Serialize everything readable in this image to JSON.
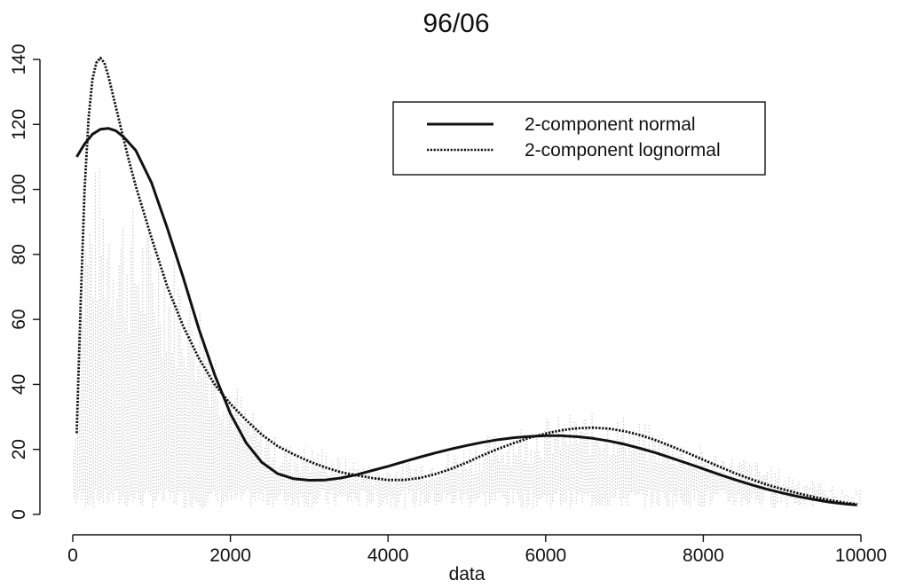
{
  "chart_data": {
    "type": "line",
    "title": "96/06",
    "xlabel": "data",
    "ylabel": "",
    "xlim": [
      0,
      10000
    ],
    "ylim": [
      0,
      140
    ],
    "x_ticks": [
      0,
      2000,
      4000,
      6000,
      8000,
      10000
    ],
    "y_ticks": [
      0,
      20,
      40,
      60,
      80,
      100,
      120,
      140
    ],
    "x_tick_labels": [
      "0",
      "2000",
      "4000",
      "6000",
      "8000",
      "10000"
    ],
    "y_tick_labels": [
      "0",
      "20",
      "40",
      "60",
      "80",
      "100",
      "120",
      "140"
    ],
    "legend_position": "top-right",
    "background_histogram": {
      "color": "#bdbdbd",
      "bin_width": 25,
      "envelope": {
        "x": [
          0,
          150,
          300,
          450,
          600,
          800,
          1000,
          1200,
          1400,
          1600,
          1800,
          2000,
          2200,
          2400,
          2600,
          2800,
          3000,
          3200,
          3400,
          3600,
          3800,
          4000,
          4500,
          5000,
          5500,
          6000,
          6500,
          7000,
          7500,
          8000,
          8500,
          9000,
          9500,
          10000
        ],
        "y": [
          20,
          95,
          110,
          105,
          100,
          95,
          90,
          85,
          78,
          70,
          55,
          45,
          35,
          28,
          24,
          22,
          22,
          21,
          18,
          17,
          16,
          16,
          18,
          22,
          27,
          30,
          32,
          31,
          26,
          21,
          18,
          14,
          10,
          5
        ]
      }
    },
    "series": [
      {
        "name": "2-component normal",
        "style": "solid",
        "color": "#111111",
        "x": [
          50,
          150,
          250,
          350,
          450,
          550,
          650,
          800,
          1000,
          1200,
          1400,
          1600,
          1800,
          2000,
          2200,
          2400,
          2600,
          2800,
          3000,
          3200,
          3400,
          3600,
          3800,
          4000,
          4200,
          4400,
          4600,
          4800,
          5000,
          5200,
          5400,
          5600,
          5800,
          6000,
          6200,
          6400,
          6600,
          6800,
          7000,
          7200,
          7400,
          7600,
          7800,
          8000,
          8200,
          8400,
          8600,
          8800,
          9000,
          9200,
          9400,
          9600,
          9800,
          9950
        ],
        "y": [
          110,
          114,
          117,
          118.5,
          118.8,
          118,
          116,
          112,
          102,
          88,
          73,
          57,
          43,
          31,
          22,
          16,
          12.5,
          11,
          10.5,
          10.6,
          11.2,
          12.2,
          13.5,
          14.8,
          16.2,
          17.6,
          18.9,
          20.1,
          21.2,
          22.2,
          23.0,
          23.6,
          24.0,
          24.2,
          24.2,
          23.9,
          23.4,
          22.6,
          21.6,
          20.3,
          18.9,
          17.3,
          15.7,
          14.0,
          12.3,
          10.7,
          9.2,
          7.8,
          6.6,
          5.5,
          4.6,
          3.8,
          3.2,
          2.9
        ]
      },
      {
        "name": "2-component lognormal",
        "style": "dotted",
        "color": "#111111",
        "x": [
          50,
          100,
          150,
          200,
          250,
          300,
          350,
          400,
          450,
          500,
          600,
          700,
          800,
          900,
          1000,
          1200,
          1400,
          1600,
          1800,
          2000,
          2200,
          2400,
          2600,
          2800,
          3000,
          3200,
          3400,
          3600,
          3800,
          4000,
          4200,
          4400,
          4600,
          4800,
          5000,
          5200,
          5400,
          5600,
          5800,
          6000,
          6200,
          6400,
          6600,
          6800,
          7000,
          7200,
          7400,
          7600,
          7800,
          8000,
          8200,
          8400,
          8600,
          8800,
          9000,
          9200,
          9400,
          9600,
          9800,
          9950
        ],
        "y": [
          25,
          65,
          100,
          122,
          134,
          139,
          140.5,
          139,
          135,
          130,
          120,
          110,
          101,
          93,
          85,
          70,
          58,
          48,
          40,
          34,
          29,
          24.5,
          21,
          18.5,
          16.3,
          14.5,
          13,
          12,
          11.2,
          10.6,
          10.6,
          11.2,
          12.4,
          14.0,
          16.0,
          18.2,
          20.2,
          22.0,
          23.6,
          24.9,
          25.9,
          26.5,
          26.7,
          26.4,
          25.6,
          24.4,
          22.8,
          20.9,
          18.9,
          16.8,
          14.7,
          12.7,
          10.9,
          9.2,
          7.8,
          6.5,
          5.4,
          4.4,
          3.6,
          3.1
        ]
      }
    ]
  }
}
